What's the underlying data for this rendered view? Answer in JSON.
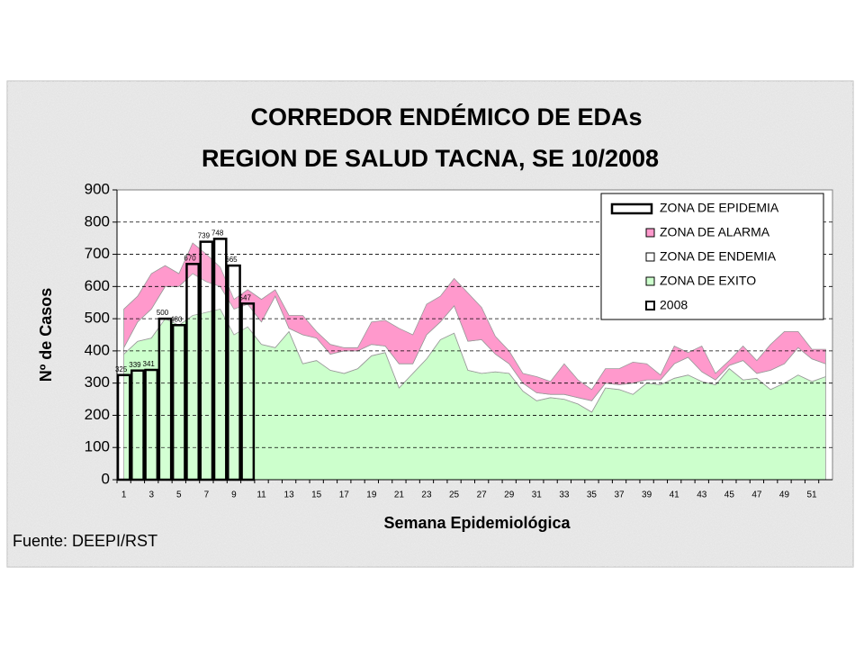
{
  "chart_data": {
    "type": "stacked-area-bar",
    "title": "CORREDOR ENDÉMICO DE EDAs",
    "subtitle": "REGION DE SALUD TACNA,  SE 10/2008",
    "y_label": "Nº de Casos",
    "x_label": "Semana Epidemiológica",
    "source": "Fuente: DEEPI/RST",
    "categories": [
      1,
      null,
      3,
      null,
      5,
      null,
      7,
      null,
      9,
      null,
      11,
      null,
      13,
      null,
      15,
      null,
      17,
      null,
      19,
      null,
      21,
      null,
      23,
      null,
      25,
      null,
      27,
      null,
      29,
      null,
      31,
      null,
      33,
      null,
      35,
      null,
      37,
      null,
      39,
      null,
      41,
      null,
      43,
      null,
      45,
      null,
      47,
      null,
      49,
      null,
      51,
      null
    ],
    "ylim": [
      0,
      900
    ],
    "yticks": [
      0,
      100,
      200,
      300,
      400,
      500,
      600,
      700,
      800,
      900
    ],
    "grid": true,
    "legend": "top-right",
    "series": [
      {
        "name": "ZONA DE EPIDEMIA",
        "color": "#ffffff"
      },
      {
        "name": "ZONA DE ALARMA",
        "color": "#ff99cc",
        "values": [
          120,
          80,
          110,
          65,
          40,
          95,
          85,
          60,
          30,
          45,
          70,
          20,
          40,
          60,
          20,
          30,
          10,
          10,
          70,
          80,
          110,
          90,
          95,
          80,
          85,
          150,
          100,
          55,
          40,
          30,
          50,
          40,
          95,
          55,
          35,
          45,
          50,
          65,
          50,
          15,
          55,
          15,
          80,
          20,
          15,
          45,
          40,
          80,
          100,
          50,
          30,
          45
        ]
      },
      {
        "name": "ZONA DE ENDEMIA",
        "color": "#ffffff",
        "values": [
          20,
          60,
          90,
          100,
          120,
          130,
          95,
          70,
          80,
          70,
          70,
          160,
          10,
          90,
          70,
          50,
          70,
          55,
          35,
          20,
          75,
          30,
          75,
          55,
          85,
          90,
          105,
          55,
          30,
          25,
          25,
          10,
          15,
          20,
          35,
          15,
          15,
          35,
          10,
          15,
          45,
          55,
          30,
          15,
          10,
          60,
          15,
          60,
          60,
          85,
          70,
          40
        ]
      },
      {
        "name": "ZONA DE EXITO",
        "color": "#ccffcc",
        "values": [
          390,
          430,
          440,
          500,
          480,
          510,
          520,
          530,
          450,
          475,
          420,
          410,
          460,
          360,
          370,
          340,
          330,
          345,
          385,
          395,
          285,
          330,
          375,
          435,
          455,
          340,
          330,
          335,
          330,
          275,
          245,
          255,
          250,
          235,
          210,
          285,
          280,
          265,
          300,
          295,
          315,
          325,
          305,
          295,
          345,
          310,
          315,
          280,
          300,
          325,
          305,
          320
        ]
      },
      {
        "name": "2008",
        "color": "#ffffff",
        "values": [
          325,
          339,
          341,
          500,
          480,
          670,
          739,
          748,
          665,
          547,
          null,
          null,
          null,
          null,
          null,
          null,
          null,
          null,
          null,
          null,
          null,
          null,
          null,
          null,
          null,
          null,
          null,
          null,
          null,
          null,
          null,
          null,
          null,
          null,
          null,
          null,
          null,
          null,
          null,
          null,
          null,
          null,
          null,
          null,
          null,
          null,
          null,
          null,
          null,
          null,
          null,
          null
        ]
      }
    ]
  }
}
